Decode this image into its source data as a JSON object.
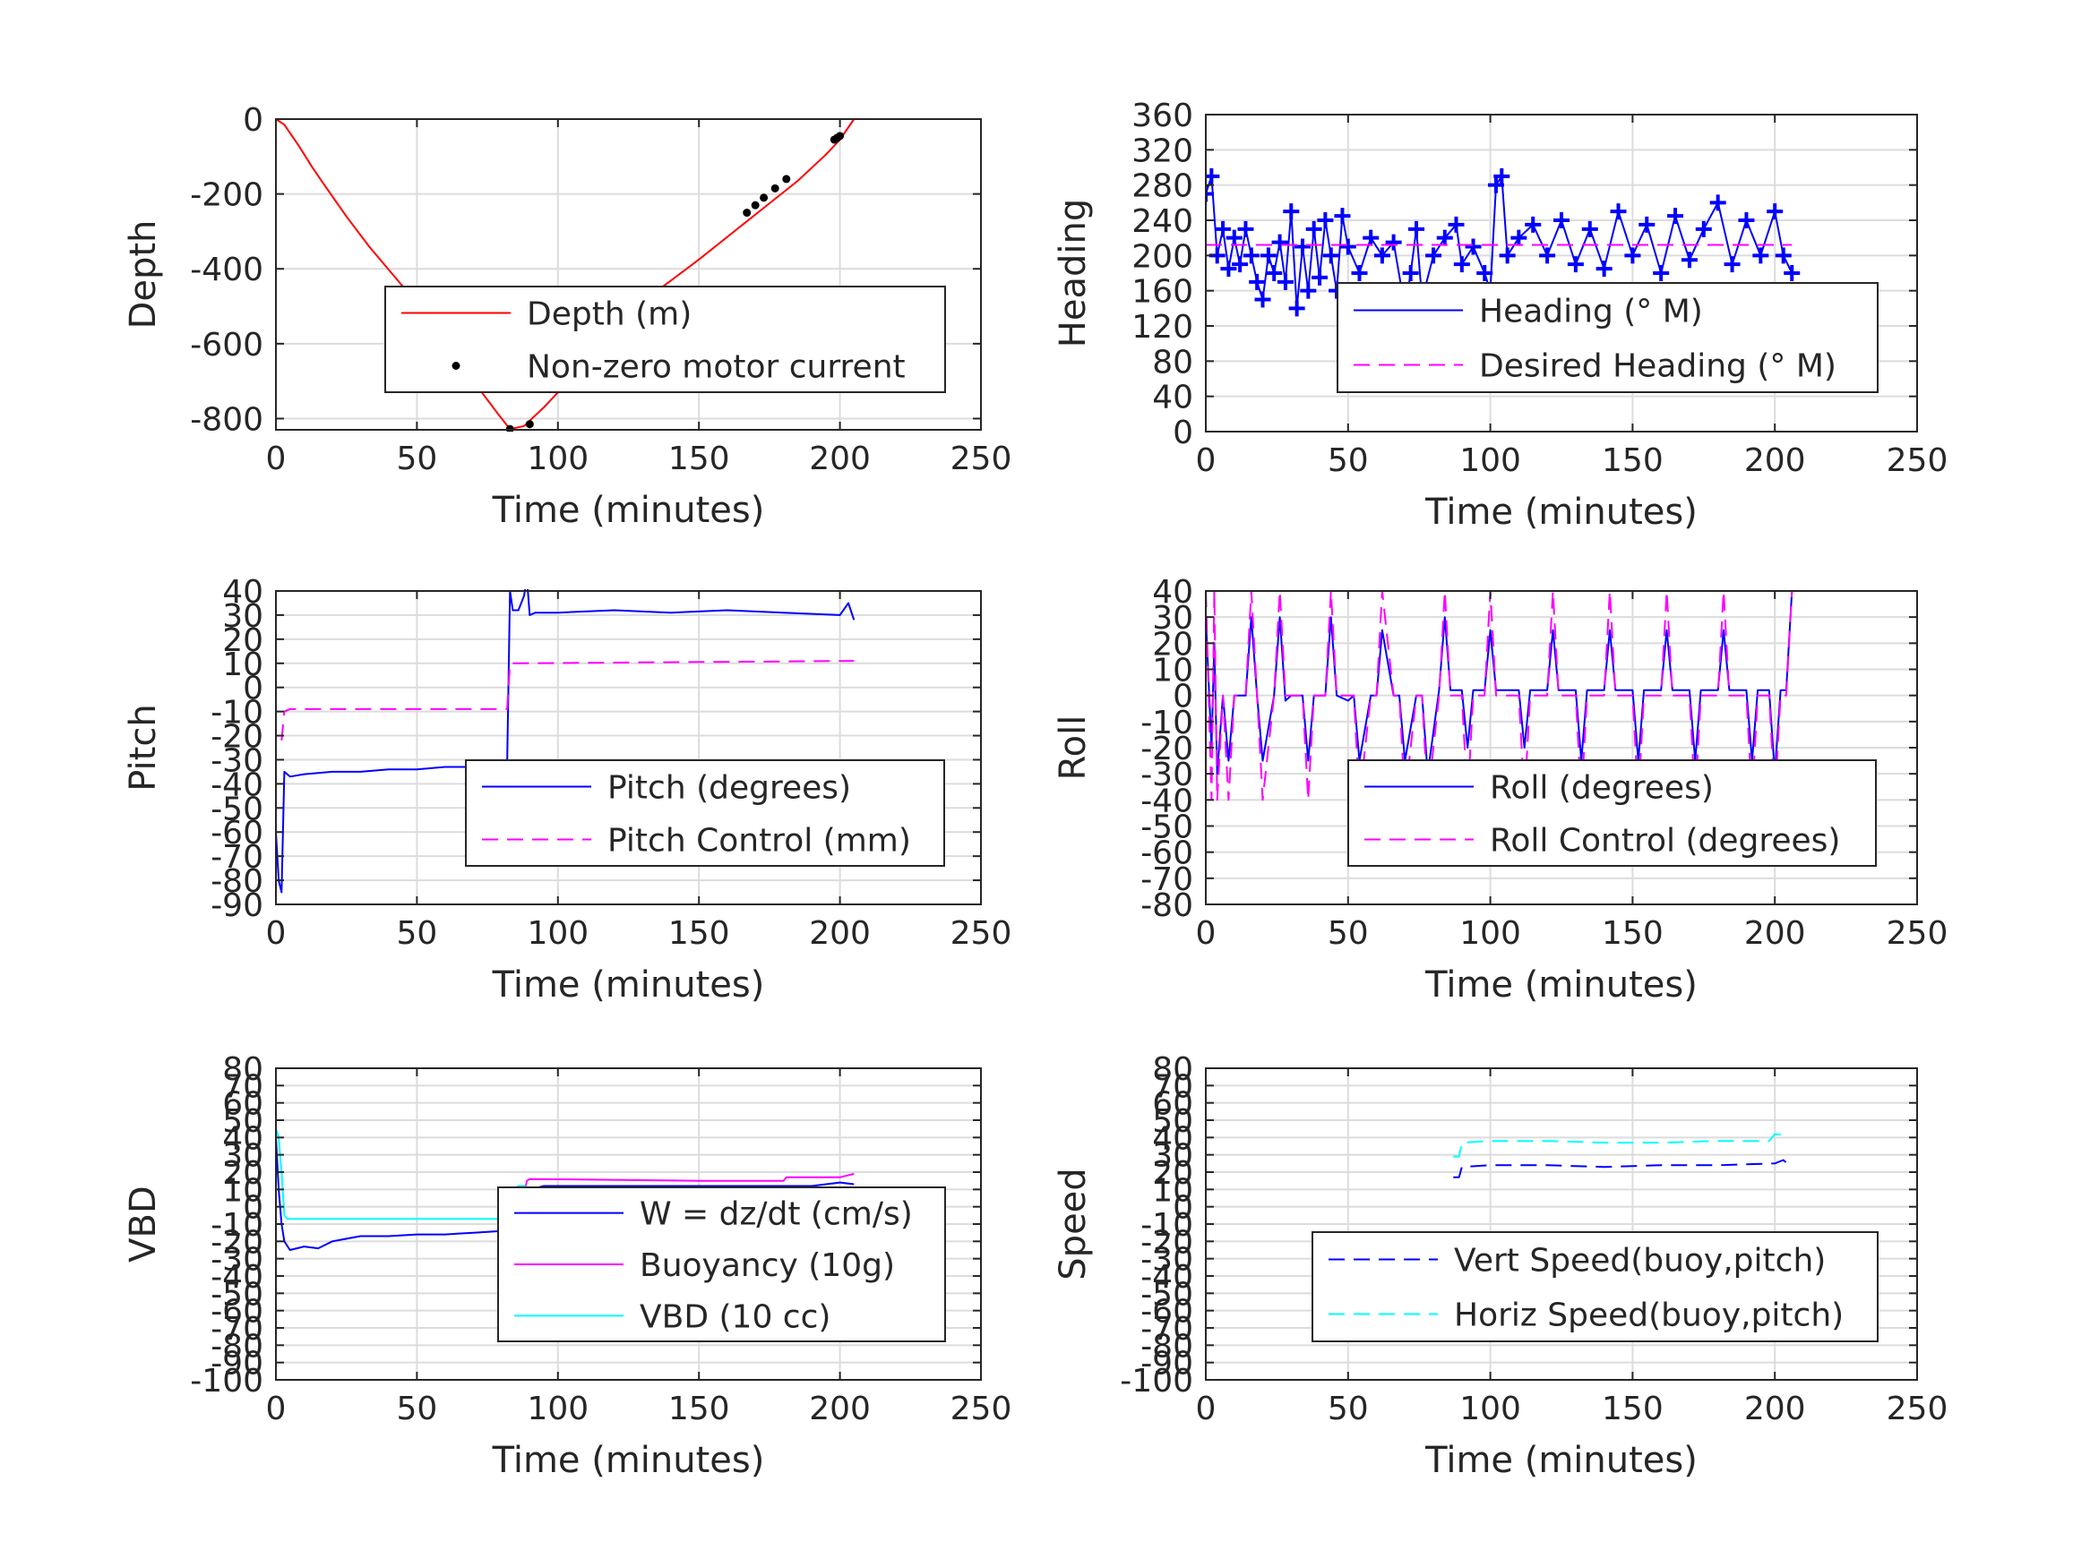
{
  "figure": {
    "background": "#ffffff"
  },
  "chart_data": [
    {
      "id": "depth",
      "type": "line",
      "xlabel": "Time (minutes)",
      "ylabel": "Depth",
      "xlim": [
        0,
        250
      ],
      "ylim": [
        -830,
        0
      ],
      "xticks": [
        0,
        50,
        100,
        150,
        200,
        250
      ],
      "yticks": [
        0,
        -200,
        -400,
        -600,
        -800
      ],
      "grid": true,
      "legend_location": "center-right",
      "series": [
        {
          "name": "Depth (m)",
          "color": "#ff0000",
          "style": "solid",
          "kind": "line",
          "x": [
            0,
            3,
            8,
            13,
            18,
            25,
            33,
            42,
            52,
            62,
            72,
            79,
            83,
            88,
            95,
            105,
            115,
            125,
            135,
            150,
            165,
            175,
            185,
            195,
            200,
            205
          ],
          "y": [
            0,
            -15,
            -70,
            -130,
            -185,
            -260,
            -340,
            -420,
            -510,
            -615,
            -720,
            -790,
            -828,
            -820,
            -770,
            -690,
            -615,
            -535,
            -460,
            -375,
            -285,
            -225,
            -165,
            -95,
            -55,
            0
          ]
        },
        {
          "name": "Non-zero motor current",
          "color": "#000000",
          "style": "none",
          "kind": "points",
          "x": [
            64,
            83,
            90,
            167,
            170,
            173,
            177,
            181,
            198,
            199,
            200
          ],
          "y": [
            -650,
            -828,
            -815,
            -250,
            -230,
            -210,
            -185,
            -160,
            -55,
            -50,
            -45
          ]
        }
      ]
    },
    {
      "id": "heading",
      "type": "line",
      "xlabel": "Time (minutes)",
      "ylabel": "Heading",
      "xlim": [
        0,
        250
      ],
      "ylim": [
        0,
        360
      ],
      "xticks": [
        0,
        50,
        100,
        150,
        200,
        250
      ],
      "yticks": [
        0,
        40,
        80,
        120,
        160,
        200,
        240,
        280,
        320,
        360
      ],
      "grid": true,
      "legend_location": "center-right",
      "series": [
        {
          "name": "Heading (° M)",
          "color": "#0000ff",
          "style": "solid",
          "kind": "line-markers",
          "x": [
            0,
            2,
            4,
            6,
            8,
            10,
            12,
            14,
            16,
            18,
            20,
            22,
            24,
            26,
            28,
            30,
            32,
            34,
            36,
            38,
            40,
            42,
            44,
            46,
            48,
            50,
            54,
            58,
            62,
            66,
            70,
            72,
            74,
            76,
            80,
            84,
            88,
            90,
            94,
            98,
            100,
            102,
            104,
            106,
            110,
            115,
            120,
            125,
            130,
            135,
            140,
            145,
            150,
            155,
            160,
            165,
            170,
            175,
            180,
            185,
            190,
            195,
            200,
            203,
            206
          ],
          "y": [
            270,
            290,
            200,
            230,
            185,
            220,
            190,
            230,
            200,
            170,
            150,
            200,
            180,
            215,
            170,
            250,
            140,
            210,
            160,
            230,
            175,
            240,
            200,
            160,
            245,
            210,
            180,
            220,
            200,
            215,
            140,
            180,
            230,
            150,
            200,
            220,
            235,
            190,
            210,
            180,
            160,
            280,
            290,
            200,
            220,
            235,
            200,
            240,
            190,
            230,
            185,
            250,
            200,
            235,
            180,
            245,
            195,
            230,
            260,
            190,
            240,
            200,
            250,
            200,
            180
          ]
        },
        {
          "name": "Desired Heading (° M)",
          "color": "#ff00ff",
          "style": "dashed",
          "kind": "line",
          "x": [
            0,
            206
          ],
          "y": [
            212,
            212
          ]
        }
      ]
    },
    {
      "id": "pitch",
      "type": "line",
      "xlabel": "Time (minutes)",
      "ylabel": "Pitch",
      "xlim": [
        0,
        250
      ],
      "ylim": [
        -90,
        40
      ],
      "xticks": [
        0,
        50,
        100,
        150,
        200,
        250
      ],
      "yticks": [
        40,
        30,
        20,
        10,
        0,
        -10,
        -20,
        -30,
        -40,
        -50,
        -60,
        -70,
        -80,
        -90
      ],
      "grid": true,
      "legend_location": "center-right",
      "series": [
        {
          "name": "Pitch (degrees)",
          "color": "#0000ff",
          "style": "solid",
          "kind": "line",
          "x": [
            0,
            1,
            2,
            3,
            5,
            10,
            20,
            30,
            40,
            50,
            60,
            70,
            80,
            82,
            83,
            84,
            86,
            88,
            89,
            90,
            92,
            100,
            120,
            140,
            160,
            180,
            200,
            203,
            205
          ],
          "y": [
            -60,
            -80,
            -85,
            -35,
            -37,
            -36,
            -35,
            -35,
            -34,
            -34,
            -33,
            -33,
            -32,
            -32,
            40,
            32,
            32,
            38,
            45,
            30,
            31,
            31,
            32,
            31,
            32,
            31,
            30,
            35,
            28
          ]
        },
        {
          "name": "Pitch Control (mm)",
          "color": "#ff00ff",
          "style": "dashed",
          "kind": "line",
          "x": [
            2,
            3,
            5,
            80,
            82,
            83,
            84,
            205
          ],
          "y": [
            -22,
            -10,
            -9,
            -9,
            -9,
            10,
            10,
            11
          ]
        }
      ]
    },
    {
      "id": "roll",
      "type": "line",
      "xlabel": "Time (minutes)",
      "ylabel": "Roll",
      "xlim": [
        0,
        250
      ],
      "ylim": [
        -80,
        40
      ],
      "xticks": [
        0,
        50,
        100,
        150,
        200,
        250
      ],
      "yticks": [
        40,
        30,
        20,
        10,
        0,
        -10,
        -20,
        -30,
        -40,
        -50,
        -60,
        -70,
        -80
      ],
      "grid": true,
      "legend_location": "center-right",
      "series": [
        {
          "name": "Roll (degrees)",
          "color": "#0000ff",
          "style": "solid",
          "kind": "line",
          "x": [
            0,
            2,
            3,
            4,
            6,
            8,
            10,
            14,
            16,
            18,
            20,
            24,
            26,
            28,
            30,
            34,
            36,
            38,
            42,
            44,
            46,
            50,
            52,
            54,
            58,
            60,
            62,
            66,
            68,
            70,
            74,
            76,
            78,
            82,
            84,
            86,
            90,
            92,
            94,
            98,
            100,
            102,
            110,
            112,
            114,
            120,
            122,
            124,
            130,
            132,
            134,
            140,
            142,
            144,
            150,
            152,
            154,
            160,
            162,
            164,
            170,
            172,
            174,
            180,
            182,
            184,
            190,
            192,
            194,
            198,
            200,
            202,
            204,
            206
          ],
          "y": [
            30,
            -20,
            20,
            -30,
            0,
            -25,
            0,
            0,
            30,
            0,
            -25,
            0,
            30,
            -2,
            0,
            0,
            -25,
            0,
            0,
            30,
            0,
            -2,
            0,
            -25,
            0,
            0,
            25,
            0,
            0,
            -25,
            0,
            0,
            -30,
            2,
            30,
            2,
            2,
            -20,
            2,
            2,
            25,
            2,
            2,
            -20,
            2,
            2,
            25,
            2,
            2,
            -25,
            2,
            2,
            25,
            2,
            2,
            -25,
            2,
            2,
            25,
            2,
            2,
            -25,
            2,
            2,
            25,
            2,
            2,
            -25,
            2,
            2,
            -30,
            2,
            2,
            40
          ]
        },
        {
          "name": "Roll Control (degrees)",
          "color": "#ff00ff",
          "style": "dashed",
          "kind": "line",
          "x": [
            0,
            2,
            3,
            4,
            6,
            8,
            10,
            14,
            16,
            18,
            20,
            24,
            26,
            28,
            30,
            34,
            36,
            38,
            42,
            44,
            46,
            50,
            52,
            54,
            58,
            60,
            62,
            66,
            68,
            70,
            74,
            76,
            78,
            82,
            84,
            86,
            90,
            92,
            94,
            98,
            100,
            102,
            110,
            112,
            114,
            120,
            122,
            124,
            130,
            132,
            134,
            140,
            142,
            144,
            150,
            152,
            154,
            160,
            162,
            164,
            170,
            172,
            174,
            180,
            182,
            184,
            190,
            192,
            194,
            198,
            200,
            202,
            204,
            206
          ],
          "y": [
            40,
            -40,
            40,
            -40,
            0,
            -40,
            0,
            0,
            40,
            0,
            -40,
            0,
            40,
            0,
            0,
            0,
            -40,
            0,
            0,
            40,
            0,
            0,
            0,
            -40,
            0,
            0,
            40,
            0,
            0,
            -40,
            0,
            0,
            -40,
            0,
            40,
            0,
            0,
            -40,
            0,
            0,
            40,
            0,
            0,
            -40,
            0,
            0,
            40,
            0,
            0,
            -40,
            0,
            0,
            40,
            0,
            0,
            -40,
            0,
            0,
            40,
            0,
            0,
            -40,
            0,
            0,
            40,
            0,
            0,
            -40,
            0,
            0,
            -40,
            0,
            0,
            40
          ]
        }
      ]
    },
    {
      "id": "vbd",
      "type": "line",
      "xlabel": "Time (minutes)",
      "ylabel": "VBD",
      "xlim": [
        0,
        250
      ],
      "ylim": [
        -100,
        80
      ],
      "xticks": [
        0,
        50,
        100,
        150,
        200,
        250
      ],
      "yticks": [
        80,
        70,
        60,
        50,
        40,
        30,
        20,
        10,
        0,
        -10,
        -20,
        -30,
        -40,
        -50,
        -60,
        -70,
        -80,
        -90,
        -100
      ],
      "grid": true,
      "legend_location": "center-right",
      "series": [
        {
          "name": "W = dz/dt (cm/s)",
          "color": "#0000ff",
          "style": "solid",
          "kind": "line",
          "x": [
            0,
            1,
            2,
            3,
            5,
            10,
            15,
            20,
            30,
            40,
            50,
            60,
            70,
            80,
            82,
            83,
            86,
            88,
            90,
            95,
            100,
            150,
            190,
            200,
            205
          ],
          "y": [
            40,
            10,
            -10,
            -20,
            -25,
            -23,
            -24,
            -20,
            -17,
            -17,
            -16,
            -16,
            -15,
            -14,
            -14,
            5,
            5,
            10,
            10,
            12,
            12,
            12,
            12,
            14,
            13
          ]
        },
        {
          "name": "Buoyancy (10g)",
          "color": "#ff00ff",
          "style": "solid",
          "kind": "line",
          "x": [
            83,
            88,
            89,
            90,
            150,
            180,
            181,
            200,
            205
          ],
          "y": [
            8,
            8,
            15,
            16,
            15,
            15,
            17,
            17,
            19
          ]
        },
        {
          "name": "VBD (10 cc)",
          "color": "#00ffff",
          "style": "solid",
          "kind": "line",
          "x": [
            0,
            1,
            2,
            3,
            4,
            80,
            82,
            83,
            84,
            86,
            88,
            90,
            205
          ],
          "y": [
            45,
            40,
            20,
            -5,
            -7,
            -7,
            -7,
            5,
            10,
            12,
            12,
            11,
            11
          ]
        }
      ]
    },
    {
      "id": "speed",
      "type": "line",
      "xlabel": "Time (minutes)",
      "ylabel": "Speed",
      "xlim": [
        0,
        250
      ],
      "ylim": [
        -100,
        80
      ],
      "xticks": [
        0,
        50,
        100,
        150,
        200,
        250
      ],
      "yticks": [
        80,
        70,
        60,
        50,
        40,
        30,
        20,
        10,
        0,
        -10,
        -20,
        -30,
        -40,
        -50,
        -60,
        -70,
        -80,
        -90,
        -100
      ],
      "grid": true,
      "legend_location": "center-right",
      "series": [
        {
          "name": "Vert Speed(buoy,pitch)",
          "color": "#0000ff",
          "style": "dashed",
          "kind": "line",
          "x": [
            87,
            89,
            90,
            100,
            120,
            140,
            160,
            180,
            200,
            203,
            205
          ],
          "y": [
            17,
            17,
            23,
            24,
            24,
            23,
            24,
            24,
            25,
            27,
            24
          ]
        },
        {
          "name": "Horiz Speed(buoy,pitch)",
          "color": "#00ffff",
          "style": "dashed",
          "kind": "line",
          "x": [
            87,
            89,
            90,
            100,
            120,
            140,
            160,
            180,
            198,
            200,
            205
          ],
          "y": [
            29,
            29,
            37,
            38,
            38,
            37,
            37,
            38,
            38,
            42,
            41
          ]
        }
      ]
    }
  ]
}
